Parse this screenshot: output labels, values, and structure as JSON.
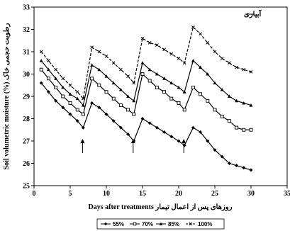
{
  "chart_data": {
    "type": "line",
    "xlabel": "Days after treatments روزهای پس از اعمال تیمار",
    "ylabel": "Soil volumetric moisture (%) رطوبت حجمی خاک",
    "xlim": [
      0,
      35
    ],
    "ylim": [
      25,
      33
    ],
    "xticks": [
      "0",
      "5",
      "10",
      "15",
      "20",
      "25",
      "30",
      "35"
    ],
    "yticks": [
      "25",
      "26",
      "27",
      "28",
      "29",
      "30",
      "31",
      "32",
      "33"
    ],
    "grid": false,
    "legend_position": "bottom",
    "annotation_text": "آبیاری",
    "irrigation_days": [
      7,
      14,
      21
    ],
    "series": [
      {
        "name": "55%",
        "color": "#000000",
        "marker": "diamond",
        "dash": "solid",
        "x": [
          1,
          2,
          3,
          4,
          5,
          6,
          6.8,
          8,
          9,
          10,
          11,
          12,
          13,
          13.8,
          15,
          16,
          17,
          18,
          19,
          20,
          20.8,
          22,
          23,
          24,
          25,
          26,
          27,
          28,
          29,
          30
        ],
        "y": [
          29.6,
          29.2,
          28.8,
          28.5,
          28.2,
          27.9,
          27.6,
          28.7,
          28.5,
          28.2,
          27.9,
          27.6,
          27.3,
          27.0,
          28.0,
          27.8,
          27.6,
          27.4,
          27.2,
          27.0,
          26.8,
          27.6,
          27.4,
          27.0,
          26.6,
          26.3,
          26.0,
          25.9,
          25.8,
          25.7
        ]
      },
      {
        "name": "70%",
        "color": "#000000",
        "marker": "square",
        "dash": "solid",
        "x": [
          1,
          2,
          3,
          4,
          5,
          6,
          6.8,
          8,
          9,
          10,
          11,
          12,
          13,
          13.8,
          15,
          16,
          17,
          18,
          19,
          20,
          20.8,
          22,
          23,
          24,
          25,
          26,
          27,
          28,
          29,
          30
        ],
        "y": [
          30.2,
          29.8,
          29.4,
          29.0,
          28.7,
          28.4,
          28.2,
          29.8,
          29.5,
          29.2,
          28.9,
          28.6,
          28.4,
          28.2,
          30.0,
          29.7,
          29.4,
          29.2,
          28.9,
          28.7,
          28.4,
          29.4,
          29.1,
          28.8,
          28.4,
          28.1,
          27.9,
          27.6,
          27.5,
          27.5
        ]
      },
      {
        "name": "85%",
        "color": "#000000",
        "marker": "triangle",
        "dash": "solid",
        "x": [
          1,
          2,
          3,
          4,
          5,
          6,
          6.8,
          8,
          9,
          10,
          11,
          12,
          13,
          13.8,
          15,
          16,
          17,
          18,
          19,
          20,
          20.8,
          22,
          23,
          24,
          25,
          26,
          27,
          28,
          29,
          30
        ],
        "y": [
          30.6,
          30.2,
          29.8,
          29.4,
          29.1,
          28.9,
          28.6,
          30.4,
          30.2,
          29.9,
          29.6,
          29.3,
          29.0,
          28.8,
          30.5,
          30.2,
          30.0,
          29.8,
          29.6,
          29.4,
          29.2,
          30.6,
          30.3,
          30.0,
          29.6,
          29.3,
          29.0,
          28.8,
          28.7,
          28.6
        ]
      },
      {
        "name": "100%",
        "color": "#000000",
        "marker": "x",
        "dash": "dashed",
        "x": [
          1,
          2,
          3,
          4,
          5,
          6,
          6.8,
          8,
          9,
          10,
          11,
          12,
          13,
          13.8,
          15,
          16,
          17,
          18,
          19,
          20,
          20.8,
          22,
          23,
          24,
          25,
          26,
          27,
          28,
          29,
          30
        ],
        "y": [
          31.0,
          30.6,
          30.2,
          29.8,
          29.5,
          29.2,
          28.9,
          31.2,
          31.0,
          30.8,
          30.5,
          30.2,
          29.9,
          29.6,
          31.6,
          31.4,
          31.3,
          31.1,
          30.9,
          30.7,
          30.5,
          32.1,
          31.8,
          31.4,
          31.0,
          30.7,
          30.5,
          30.3,
          30.2,
          30.1
        ]
      }
    ]
  }
}
